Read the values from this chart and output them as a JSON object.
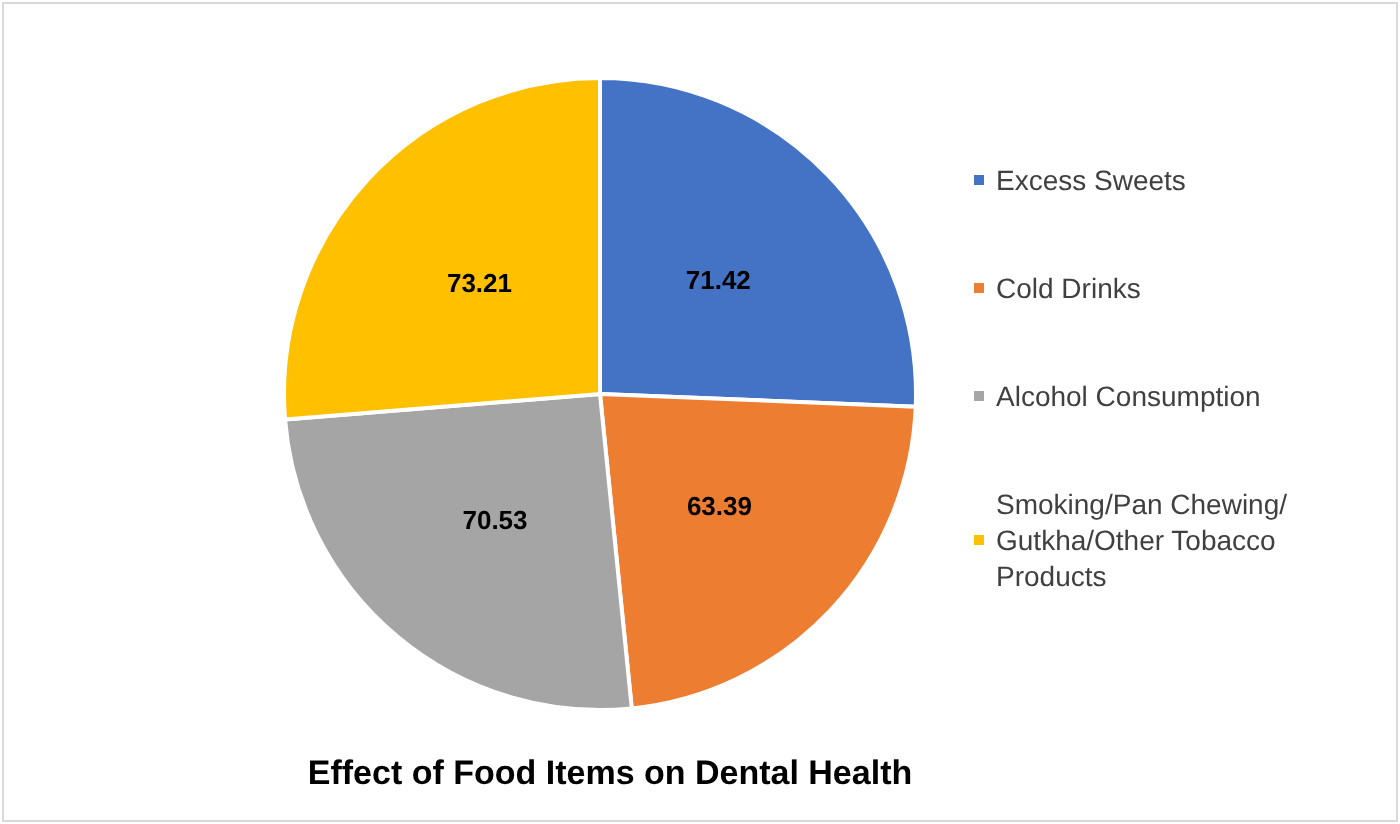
{
  "chart_data": {
    "type": "pie",
    "title": "Effect of Food Items on Dental Health",
    "categories": [
      "Excess Sweets",
      "Cold Drinks",
      "Alcohol Consumption",
      "Smoking/Pan Chewing/Gutkha/Other Tobacco Products"
    ],
    "values": [
      71.42,
      63.39,
      70.53,
      73.21
    ],
    "colors": [
      "#4472c4",
      "#ed7d31",
      "#a5a5a5",
      "#ffc000"
    ],
    "data_labels": true,
    "legend": "right"
  }
}
